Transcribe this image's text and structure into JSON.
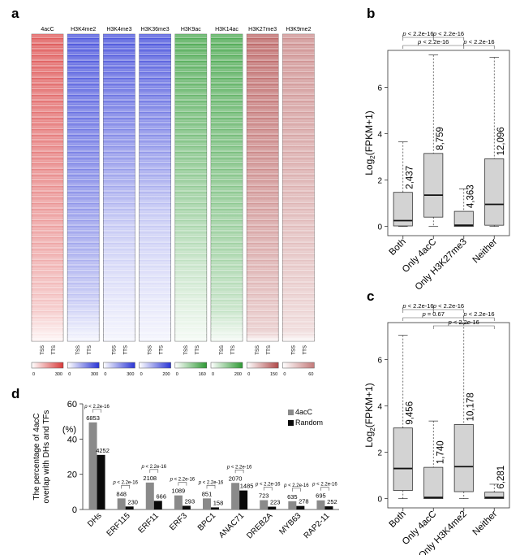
{
  "panel_labels": {
    "a": "a",
    "b": "b",
    "c": "c",
    "d": "d"
  },
  "colors": {
    "red": "#d93a3a",
    "blue": "#2a35d6",
    "green": "#2e9a34",
    "maroon": "#b04a4a",
    "rose": "#c47a7a",
    "box_fill": "#d3d3d3",
    "bar_4acc": "#8a8a8a",
    "bar_random": "#0a0a0a"
  },
  "chart_data": [
    {
      "type": "heatmap",
      "panel": "a",
      "tracks": [
        {
          "name": "4acC",
          "scale_min": "0",
          "scale_max": "300",
          "color": "red",
          "fade_start": 0.9
        },
        {
          "name": "H3K4me2",
          "scale_min": "0",
          "scale_max": "300",
          "color": "blue",
          "fade_start": 0.86
        },
        {
          "name": "H3K4me3",
          "scale_min": "0",
          "scale_max": "300",
          "color": "blue",
          "fade_start": 0.62
        },
        {
          "name": "H3K36me3",
          "scale_min": "0",
          "scale_max": "200",
          "color": "blue",
          "fade_start": 0.58
        },
        {
          "name": "H3K9ac",
          "scale_min": "0",
          "scale_max": "160",
          "color": "green",
          "fade_start": 0.75
        },
        {
          "name": "H3K14ac",
          "scale_min": "0",
          "scale_max": "200",
          "color": "green",
          "fade_start": 0.9
        },
        {
          "name": "H3K27me3",
          "scale_min": "0",
          "scale_max": "150",
          "color": "maroon",
          "fade_start": 0.97
        },
        {
          "name": "H3K9me2",
          "scale_min": "0",
          "scale_max": "60",
          "color": "rose",
          "fade_start": 0.97
        }
      ],
      "tss_label": "TSS",
      "tts_label": "TTS"
    },
    {
      "type": "box",
      "panel": "b",
      "ylabel": "Log2(FPKM+1)",
      "ylabel_base": "Log",
      "ylabel_sub": "2",
      "ylabel_tail": "(FPKM+1)",
      "ylim": [
        -0.4,
        7.6
      ],
      "yticks": [
        0,
        2,
        4,
        6
      ],
      "ytick_labels": [
        "0",
        "2",
        "4",
        "6"
      ],
      "categories": [
        "Both",
        "Only 4acC",
        "Only H3K27me3",
        "Neither"
      ],
      "boxes": [
        {
          "low": 0,
          "q1": 0.02,
          "median": 0.25,
          "q3": 1.47,
          "high": 3.65
        },
        {
          "low": 0,
          "q1": 0.4,
          "median": 1.35,
          "q3": 3.15,
          "high": 7.4
        },
        {
          "low": 0,
          "q1": 0,
          "median": 0.05,
          "q3": 0.65,
          "high": 1.62
        },
        {
          "low": 0,
          "q1": 0.05,
          "median": 0.95,
          "q3": 2.92,
          "high": 7.3
        }
      ],
      "counts": [
        "2,437",
        "8,759",
        "4,363",
        "12,096"
      ],
      "comparisons": [
        {
          "from": 1,
          "to": 2,
          "label": "p < 2.2e-16",
          "level": 0
        },
        {
          "from": 2,
          "to": 3,
          "label": "p < 2.2e-16",
          "level": 0
        },
        {
          "from": 1,
          "to": 3,
          "label": "p < 2.2e-16",
          "level": 1
        },
        {
          "from": 3,
          "to": 4,
          "label": "p < 2.2e-16",
          "level": 1
        }
      ]
    },
    {
      "type": "box",
      "panel": "c",
      "ylabel": "Log2(FPKM+1)",
      "ylabel_base": "Log",
      "ylabel_sub": "2",
      "ylabel_tail": "(FPKM+1)",
      "ylim": [
        -0.4,
        7.6
      ],
      "yticks": [
        0,
        2,
        4,
        6
      ],
      "ytick_labels": [
        "0",
        "2",
        "4",
        "6"
      ],
      "categories": [
        "Both",
        "Only 4acC",
        "Only H3K4me2",
        "Neither"
      ],
      "boxes": [
        {
          "low": 0,
          "q1": 0.35,
          "median": 1.3,
          "q3": 3.05,
          "high": 7.05
        },
        {
          "low": 0,
          "q1": 0,
          "median": 0.05,
          "q3": 1.35,
          "high": 3.35
        },
        {
          "low": 0,
          "q1": 0.3,
          "median": 1.38,
          "q3": 3.2,
          "high": 7.55
        },
        {
          "low": 0,
          "q1": 0,
          "median": 0.05,
          "q3": 0.28,
          "high": 0.62
        }
      ],
      "counts": [
        "9,456",
        "1,740",
        "10,178",
        "6,281"
      ],
      "comparisons": [
        {
          "from": 1,
          "to": 2,
          "label": "p < 2.2e-16",
          "level": 0
        },
        {
          "from": 2,
          "to": 3,
          "label": "p < 2.2e-16",
          "level": 0
        },
        {
          "from": 3,
          "to": 4,
          "label": "p < 2.2e-16",
          "level": 1
        },
        {
          "from": 1,
          "to": 3,
          "label": "p = 0.67",
          "level": 1
        },
        {
          "from": 2,
          "to": 4,
          "label": "p < 2.2e-16",
          "level": 2
        }
      ]
    },
    {
      "type": "bar",
      "panel": "d",
      "ylabel_line1": "The percentage of 4acC",
      "ylabel_line2": "overlap with DHs and TFs",
      "yunit": "(%)",
      "ylim": [
        0,
        60
      ],
      "yticks": [
        0,
        20,
        40,
        60
      ],
      "ytick_labels": [
        "0",
        "20",
        "40",
        "60"
      ],
      "legend_position": "top-right",
      "categories": [
        "DHs",
        "ERF115",
        "ERF11",
        "ERF3",
        "BPC1",
        "ANAC71",
        "DREB2A",
        "MYB63",
        "RAP2-11"
      ],
      "series": [
        {
          "name": "4acC",
          "color": "bar_4acc",
          "values": [
            49.5,
            6.3,
            15.3,
            8.0,
            6.3,
            15.1,
            5.3,
            4.7,
            5.2
          ],
          "labels": [
            "6853",
            "848",
            "2108",
            "1089",
            "851",
            "2070",
            "723",
            "635",
            "695"
          ]
        },
        {
          "name": "Random",
          "color": "bar_random",
          "values": [
            31.0,
            1.7,
            4.9,
            2.1,
            1.2,
            10.8,
            1.6,
            2.0,
            1.8
          ],
          "labels": [
            "4252",
            "230",
            "666",
            "293",
            "158",
            "1485",
            "223",
            "278",
            "252"
          ]
        }
      ],
      "pvalue_label": "p < 2.2e-16"
    }
  ]
}
